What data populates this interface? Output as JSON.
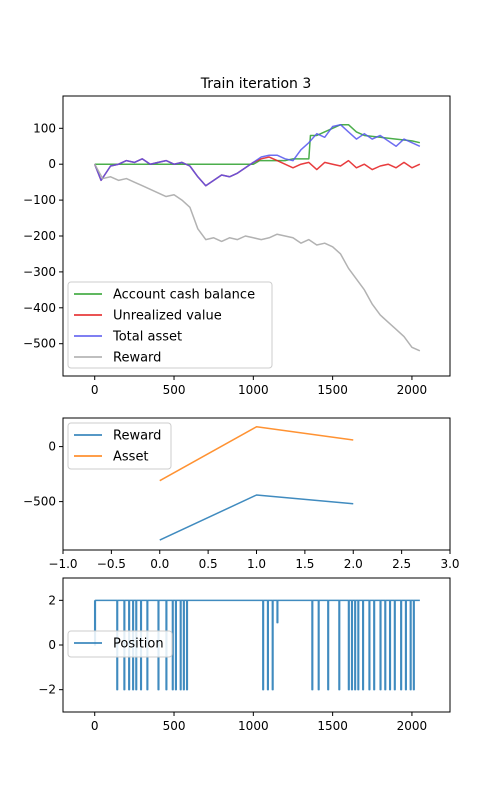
{
  "chart_data": [
    {
      "type": "line",
      "title": "Train iteration 3",
      "xlabel": "",
      "ylabel": "",
      "xlim": [
        -200,
        2240
      ],
      "ylim": [
        -590,
        190
      ],
      "xticks": [
        0,
        500,
        1000,
        1500,
        2000
      ],
      "xtick_labels": [
        "0",
        "500",
        "1000",
        "1500",
        "2000"
      ],
      "yticks": [
        -500,
        -400,
        -300,
        -200,
        -100,
        0,
        100
      ],
      "ytick_labels": [
        "−500",
        "−400",
        "−300",
        "−200",
        "−100",
        "0",
        "100"
      ],
      "legend": "lower-left",
      "grid": false,
      "series": [
        {
          "name": "Account cash balance",
          "color": "#2ca02c",
          "x": [
            0,
            100,
            200,
            300,
            400,
            500,
            600,
            700,
            800,
            900,
            1000,
            1040,
            1100,
            1200,
            1250,
            1300,
            1350,
            1360,
            1400,
            1500,
            1550,
            1600,
            1650,
            1700,
            1800,
            1900,
            2000,
            2050
          ],
          "y": [
            0,
            0,
            0,
            0,
            0,
            0,
            0,
            0,
            0,
            0,
            0,
            10,
            10,
            10,
            15,
            15,
            15,
            80,
            80,
            100,
            110,
            110,
            90,
            80,
            75,
            70,
            65,
            60
          ]
        },
        {
          "name": "Unrealized value",
          "color": "#e41a1c",
          "x": [
            0,
            40,
            100,
            150,
            200,
            250,
            300,
            350,
            400,
            450,
            500,
            550,
            600,
            650,
            700,
            750,
            800,
            850,
            900,
            950,
            1000,
            1050,
            1100,
            1150,
            1200,
            1250,
            1300,
            1350,
            1400,
            1450,
            1500,
            1550,
            1600,
            1650,
            1700,
            1750,
            1800,
            1850,
            1900,
            1950,
            2000,
            2050
          ],
          "y": [
            0,
            -45,
            -5,
            0,
            10,
            5,
            15,
            0,
            5,
            10,
            0,
            5,
            -5,
            -35,
            -60,
            -45,
            -30,
            -35,
            -25,
            -10,
            5,
            15,
            20,
            10,
            0,
            -10,
            0,
            5,
            -15,
            5,
            0,
            -5,
            10,
            -10,
            0,
            -15,
            -5,
            0,
            -10,
            5,
            -10,
            0
          ]
        },
        {
          "name": "Total asset",
          "color": "#5555ee",
          "x": [
            0,
            40,
            100,
            150,
            200,
            250,
            300,
            350,
            400,
            450,
            500,
            550,
            600,
            650,
            700,
            750,
            800,
            850,
            900,
            950,
            1000,
            1050,
            1100,
            1150,
            1200,
            1250,
            1300,
            1350,
            1400,
            1450,
            1500,
            1550,
            1600,
            1650,
            1700,
            1750,
            1800,
            1850,
            1900,
            1950,
            2000,
            2050
          ],
          "y": [
            0,
            -45,
            -5,
            0,
            10,
            5,
            15,
            0,
            5,
            10,
            0,
            5,
            -5,
            -35,
            -60,
            -45,
            -30,
            -35,
            -25,
            -10,
            5,
            20,
            25,
            25,
            15,
            10,
            40,
            60,
            85,
            75,
            105,
            110,
            90,
            70,
            85,
            70,
            80,
            65,
            50,
            70,
            60,
            50
          ]
        },
        {
          "name": "Reward",
          "color": "#aaaaaa",
          "x": [
            0,
            50,
            100,
            150,
            200,
            250,
            300,
            350,
            400,
            450,
            500,
            550,
            600,
            650,
            700,
            750,
            800,
            850,
            900,
            950,
            1000,
            1050,
            1100,
            1150,
            1200,
            1250,
            1300,
            1350,
            1400,
            1450,
            1500,
            1550,
            1600,
            1650,
            1700,
            1750,
            1800,
            1850,
            1900,
            1950,
            2000,
            2050
          ],
          "y": [
            0,
            -40,
            -35,
            -45,
            -40,
            -50,
            -60,
            -70,
            -80,
            -90,
            -85,
            -100,
            -120,
            -180,
            -210,
            -205,
            -215,
            -205,
            -210,
            -200,
            -205,
            -210,
            -205,
            -195,
            -200,
            -205,
            -220,
            -210,
            -225,
            -220,
            -230,
            -250,
            -290,
            -320,
            -350,
            -390,
            -420,
            -440,
            -460,
            -480,
            -510,
            -520
          ]
        }
      ]
    },
    {
      "type": "line",
      "title": "",
      "xlabel": "",
      "ylabel": "",
      "xlim": [
        -1.0,
        3.0
      ],
      "ylim": [
        -940,
        260
      ],
      "xticks": [
        -1.0,
        -0.5,
        0.0,
        0.5,
        1.0,
        1.5,
        2.0,
        2.5,
        3.0
      ],
      "xtick_labels": [
        "−1.0",
        "−0.5",
        "0.0",
        "0.5",
        "1.0",
        "1.5",
        "2.0",
        "2.5",
        "3.0"
      ],
      "yticks": [
        -500,
        0
      ],
      "ytick_labels": [
        "−500",
        "0"
      ],
      "legend": "top-left",
      "grid": false,
      "series": [
        {
          "name": "Reward",
          "color": "#1f77b4",
          "x": [
            0,
            1,
            2
          ],
          "y": [
            -850,
            -440,
            -520
          ]
        },
        {
          "name": "Asset",
          "color": "#ff7f0e",
          "x": [
            0,
            1,
            2
          ],
          "y": [
            -310,
            180,
            60
          ]
        }
      ]
    },
    {
      "type": "line",
      "title": "",
      "xlabel": "",
      "ylabel": "",
      "xlim": [
        -200,
        2240
      ],
      "ylim": [
        -3,
        3
      ],
      "xticks": [
        0,
        500,
        1000,
        1500,
        2000
      ],
      "xtick_labels": [
        "0",
        "500",
        "1000",
        "1500",
        "2000"
      ],
      "yticks": [
        -2,
        0,
        2
      ],
      "ytick_labels": [
        "−2",
        "0",
        "2"
      ],
      "legend": "center-left",
      "grid": false,
      "series": [
        {
          "name": "Position",
          "color": "#1f77b4",
          "baseline": 2,
          "low": -2,
          "x_range": [
            0,
            2050
          ],
          "drop_start": [
            0,
            140,
            185,
            215,
            240,
            260,
            290,
            330,
            400,
            450,
            490,
            510,
            540,
            560,
            580,
            1060,
            1090,
            1120,
            1150,
            1370,
            1410,
            1470,
            1540,
            1600,
            1620,
            1640,
            1660,
            1690,
            1730,
            1760,
            1800,
            1830,
            1860,
            1890,
            1930,
            1960,
            1990,
            2010
          ],
          "drop_value": [
            0,
            -2,
            -2,
            -2,
            -2,
            -2,
            -2,
            -2,
            -2,
            -2,
            -2,
            -2,
            -2,
            -2,
            -2,
            -2,
            -2,
            -2,
            1,
            -2,
            -2,
            -2,
            -2,
            -2,
            -2,
            -2,
            -2,
            -2,
            -2,
            -2,
            -2,
            -2,
            -2,
            -2,
            -2,
            -2,
            -2,
            -2
          ]
        }
      ]
    }
  ]
}
